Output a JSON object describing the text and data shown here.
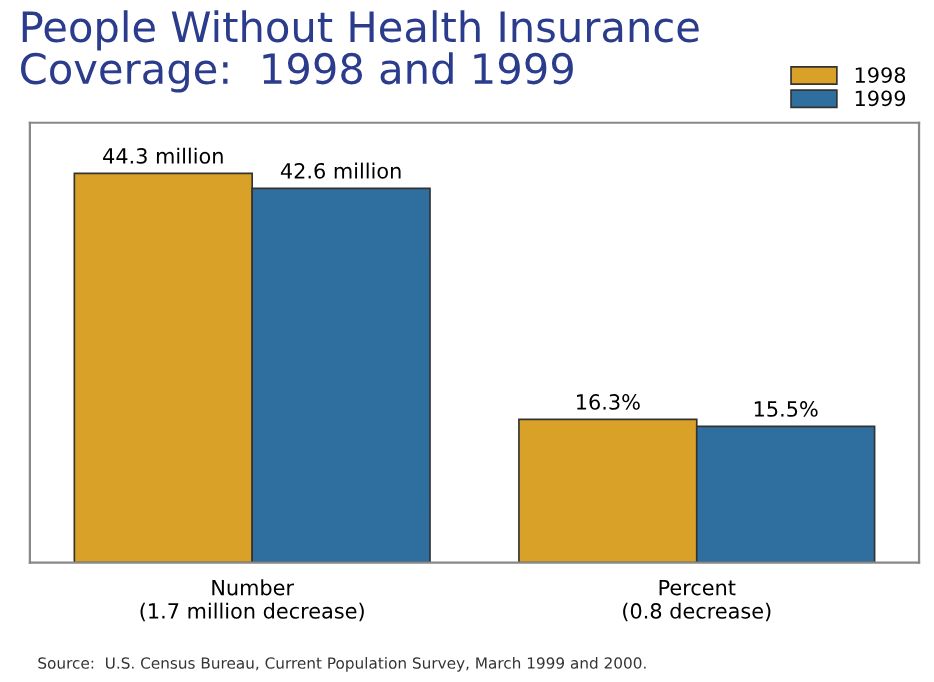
{
  "chart_data": {
    "type": "bar",
    "title": "People Without Health Insurance\nCoverage:  1998 and 1999",
    "categories": [
      "Number\n(1.7 million decrease)",
      "Percent\n(0.8 decrease)"
    ],
    "series": [
      {
        "name": "1998",
        "color": "#d9a127",
        "values": [
          44.3,
          16.3
        ],
        "value_labels": [
          "44.3 million",
          "16.3%"
        ]
      },
      {
        "name": "1999",
        "color": "#2e6fa0",
        "values": [
          42.6,
          15.5
        ],
        "value_labels": [
          "42.6 million",
          "15.5%"
        ]
      }
    ],
    "legend": "top right",
    "grid": false,
    "tick_labels": "x",
    "annotations": [
      "Source:  U.S. Census Bureau, Current Population Survey, March 1999 and 2000."
    ]
  }
}
